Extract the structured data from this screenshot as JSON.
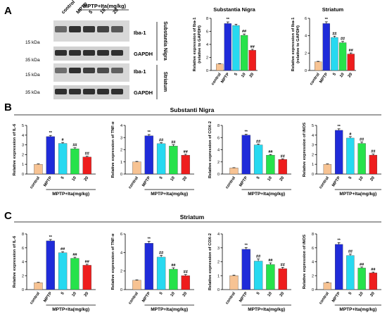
{
  "panel_letters": {
    "A": "A",
    "B": "B",
    "C": "C"
  },
  "section_titles": {
    "B": "Substanti Nigra",
    "C": "Striatum"
  },
  "blot": {
    "lane_labels": [
      "control",
      "MPTP",
      "5",
      "10",
      "20"
    ],
    "treatment_header": "MPTP+Ita(mg/kg)",
    "markers": [
      "15 kDa",
      "35 kDa",
      "15 kDa",
      "35 kDa"
    ],
    "rows": [
      "Iba-1",
      "GAPDH",
      "Iba-1",
      "GAPDH"
    ],
    "tissues": [
      "Substantia Nigra",
      "Striatum"
    ]
  },
  "group_label": "MPTP+Ita(mg/kg)",
  "colors": {
    "control": "#f7c393",
    "MPTP": "#1f2bd9",
    "dose5": "#27d9f0",
    "dose10": "#27e24b",
    "dose20": "#ee1d1d",
    "error": "#000000"
  },
  "chart_data": [
    {
      "type": "bar",
      "title": "Substantia Nigra",
      "ylabel": "Relative expression of Iba-1 (relative to GAPDH)",
      "categories": [
        "control",
        "MPTP",
        "5",
        "10",
        "20"
      ],
      "values": [
        1.0,
        7.2,
        6.9,
        5.4,
        3.1
      ],
      "errors": [
        0.05,
        0.25,
        0.2,
        0.2,
        0.15
      ],
      "annotations": [
        "",
        "**",
        "",
        "##",
        "##"
      ],
      "ylim": [
        0,
        8
      ],
      "yticks": [
        0,
        2,
        4,
        6,
        8
      ]
    },
    {
      "type": "bar",
      "title": "Striatum",
      "ylabel": "Relative expression of Iba-1 (relative to GAPDH)",
      "categories": [
        "control",
        "MPTP",
        "5",
        "10",
        "20"
      ],
      "values": [
        1.0,
        5.4,
        3.8,
        3.2,
        1.9
      ],
      "errors": [
        0.05,
        0.2,
        0.15,
        0.15,
        0.12
      ],
      "annotations": [
        "",
        "**",
        "##",
        "##",
        "##"
      ],
      "ylim": [
        0,
        6
      ],
      "yticks": [
        0,
        2,
        4,
        6
      ]
    },
    {
      "type": "bar",
      "ylabel": "Relative expression of IL-6",
      "categories": [
        "control",
        "MPTP",
        "5",
        "10",
        "20"
      ],
      "values": [
        1.0,
        3.85,
        3.15,
        2.6,
        1.75
      ],
      "errors": [
        0.04,
        0.12,
        0.1,
        0.1,
        0.08
      ],
      "annotations": [
        "",
        "**",
        "#",
        "##",
        "##"
      ],
      "ylim": [
        0,
        5
      ],
      "yticks": [
        0,
        1,
        2,
        3,
        4,
        5
      ]
    },
    {
      "type": "bar",
      "ylabel": "Relative expression of TNF-α",
      "categories": [
        "control",
        "MPTP",
        "5",
        "10",
        "20"
      ],
      "values": [
        1.0,
        3.15,
        2.5,
        2.3,
        1.55
      ],
      "errors": [
        0.04,
        0.1,
        0.08,
        0.12,
        0.08
      ],
      "annotations": [
        "",
        "**",
        "##",
        "##",
        "##"
      ],
      "ylim": [
        0,
        4
      ],
      "yticks": [
        0,
        1,
        2,
        3,
        4
      ]
    },
    {
      "type": "bar",
      "ylabel": "Relative expression of COX-2",
      "categories": [
        "control",
        "MPTP",
        "5",
        "10",
        "20"
      ],
      "values": [
        1.0,
        6.4,
        4.8,
        3.1,
        2.4
      ],
      "errors": [
        0.05,
        0.15,
        0.15,
        0.12,
        0.1
      ],
      "annotations": [
        "",
        "**",
        "##",
        "##",
        "##"
      ],
      "ylim": [
        0,
        8
      ],
      "yticks": [
        0,
        2,
        4,
        6,
        8
      ]
    },
    {
      "type": "bar",
      "ylabel": "Relative expression of iNOS",
      "categories": [
        "control",
        "MPTP",
        "5",
        "10",
        "20"
      ],
      "values": [
        1.0,
        4.5,
        3.7,
        3.15,
        1.95
      ],
      "errors": [
        0.04,
        0.15,
        0.15,
        0.15,
        0.1
      ],
      "annotations": [
        "",
        "**",
        "#",
        "##",
        "##"
      ],
      "ylim": [
        0,
        5
      ],
      "yticks": [
        0,
        1,
        2,
        3,
        4,
        5
      ]
    },
    {
      "type": "bar",
      "ylabel": "Relative expression of IL-6",
      "categories": [
        "control",
        "MPTP",
        "5",
        "10",
        "20"
      ],
      "values": [
        1.0,
        7.0,
        5.3,
        4.5,
        3.5
      ],
      "errors": [
        0.05,
        0.2,
        0.15,
        0.15,
        0.15
      ],
      "annotations": [
        "",
        "**",
        "##",
        "##",
        "##"
      ],
      "ylim": [
        0,
        8
      ],
      "yticks": [
        0,
        2,
        4,
        6,
        8
      ]
    },
    {
      "type": "bar",
      "ylabel": "Relative expression of TNF-α",
      "categories": [
        "control",
        "MPTP",
        "5",
        "10",
        "20"
      ],
      "values": [
        1.0,
        5.0,
        3.5,
        2.2,
        1.5
      ],
      "errors": [
        0.05,
        0.2,
        0.2,
        0.15,
        0.12
      ],
      "annotations": [
        "",
        "**",
        "##",
        "##",
        "##"
      ],
      "ylim": [
        0,
        6
      ],
      "yticks": [
        0,
        2,
        4,
        6
      ]
    },
    {
      "type": "bar",
      "ylabel": "Relative expression of COX-2",
      "categories": [
        "control",
        "MPTP",
        "5",
        "10",
        "20"
      ],
      "values": [
        1.0,
        2.9,
        2.05,
        1.8,
        1.5
      ],
      "errors": [
        0.04,
        0.12,
        0.15,
        0.12,
        0.1
      ],
      "annotations": [
        "",
        "**",
        "##",
        "##",
        "##"
      ],
      "ylim": [
        0,
        4
      ],
      "yticks": [
        0,
        1,
        2,
        3,
        4
      ]
    },
    {
      "type": "bar",
      "ylabel": "Relative expression of iNOS",
      "categories": [
        "control",
        "MPTP",
        "5",
        "10",
        "20"
      ],
      "values": [
        1.0,
        6.5,
        4.9,
        3.1,
        2.4
      ],
      "errors": [
        0.05,
        0.25,
        0.2,
        0.15,
        0.12
      ],
      "annotations": [
        "",
        "**",
        "##",
        "##",
        "##"
      ],
      "ylim": [
        0,
        8
      ],
      "yticks": [
        0,
        2,
        4,
        6,
        8
      ]
    }
  ]
}
